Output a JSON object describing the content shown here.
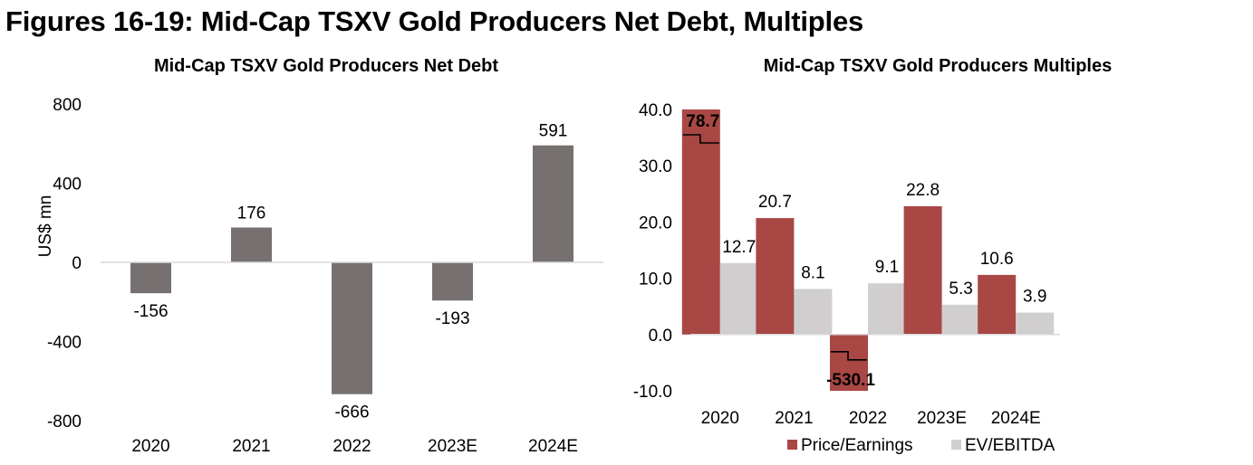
{
  "figure_title": "Figures 16-19: Mid-Cap TSXV Gold Producers Net Debt, Multiples",
  "colors": {
    "net_debt_bar": "#767170",
    "pe_bar": "#A94744",
    "ev_bar": "#D0CECE",
    "axis": "#D9D9D9",
    "text": "#000000"
  },
  "chart_data": [
    {
      "type": "bar",
      "title": "Mid-Cap TSXV Gold Producers Net Debt",
      "xlabel": "",
      "ylabel": "US$ mn",
      "categories": [
        "2020",
        "2021",
        "2022",
        "2023E",
        "2024E"
      ],
      "values": [
        -156,
        176,
        -666,
        -193,
        591
      ],
      "data_labels": [
        "-156",
        "176",
        "-666",
        "-193",
        "591"
      ],
      "ylim": [
        -800,
        800
      ],
      "yticks": [
        800,
        400,
        0,
        -400,
        -800
      ],
      "ytick_labels": [
        "800",
        "400",
        "0",
        "-400",
        "-800"
      ],
      "grid": false,
      "legend": "none"
    },
    {
      "type": "bar",
      "title": "Mid-Cap TSXV Gold Producers Multiples",
      "xlabel": "",
      "ylabel": "",
      "categories": [
        "2020",
        "2021",
        "2022",
        "2023E",
        "2024E"
      ],
      "series": [
        {
          "name": "Price/Earnings",
          "values": [
            78.7,
            20.7,
            -530.1,
            22.8,
            10.6
          ],
          "data_labels": [
            "78.7",
            "20.7",
            "-530.1",
            "22.8",
            "10.6"
          ],
          "truncated": [
            true,
            false,
            true,
            false,
            false
          ]
        },
        {
          "name": "EV/EBITDA",
          "values": [
            12.7,
            8.1,
            9.1,
            5.3,
            3.9
          ],
          "data_labels": [
            "12.7",
            "8.1",
            "9.1",
            "5.3",
            "3.9"
          ]
        }
      ],
      "ylim": [
        -10,
        40
      ],
      "yticks": [
        40,
        30,
        20,
        10,
        0,
        -10
      ],
      "ytick_labels": [
        "40.0",
        "30.0",
        "20.0",
        "10.0",
        "0.0",
        "-10.0"
      ],
      "grid": false,
      "legend": "bottom"
    }
  ]
}
